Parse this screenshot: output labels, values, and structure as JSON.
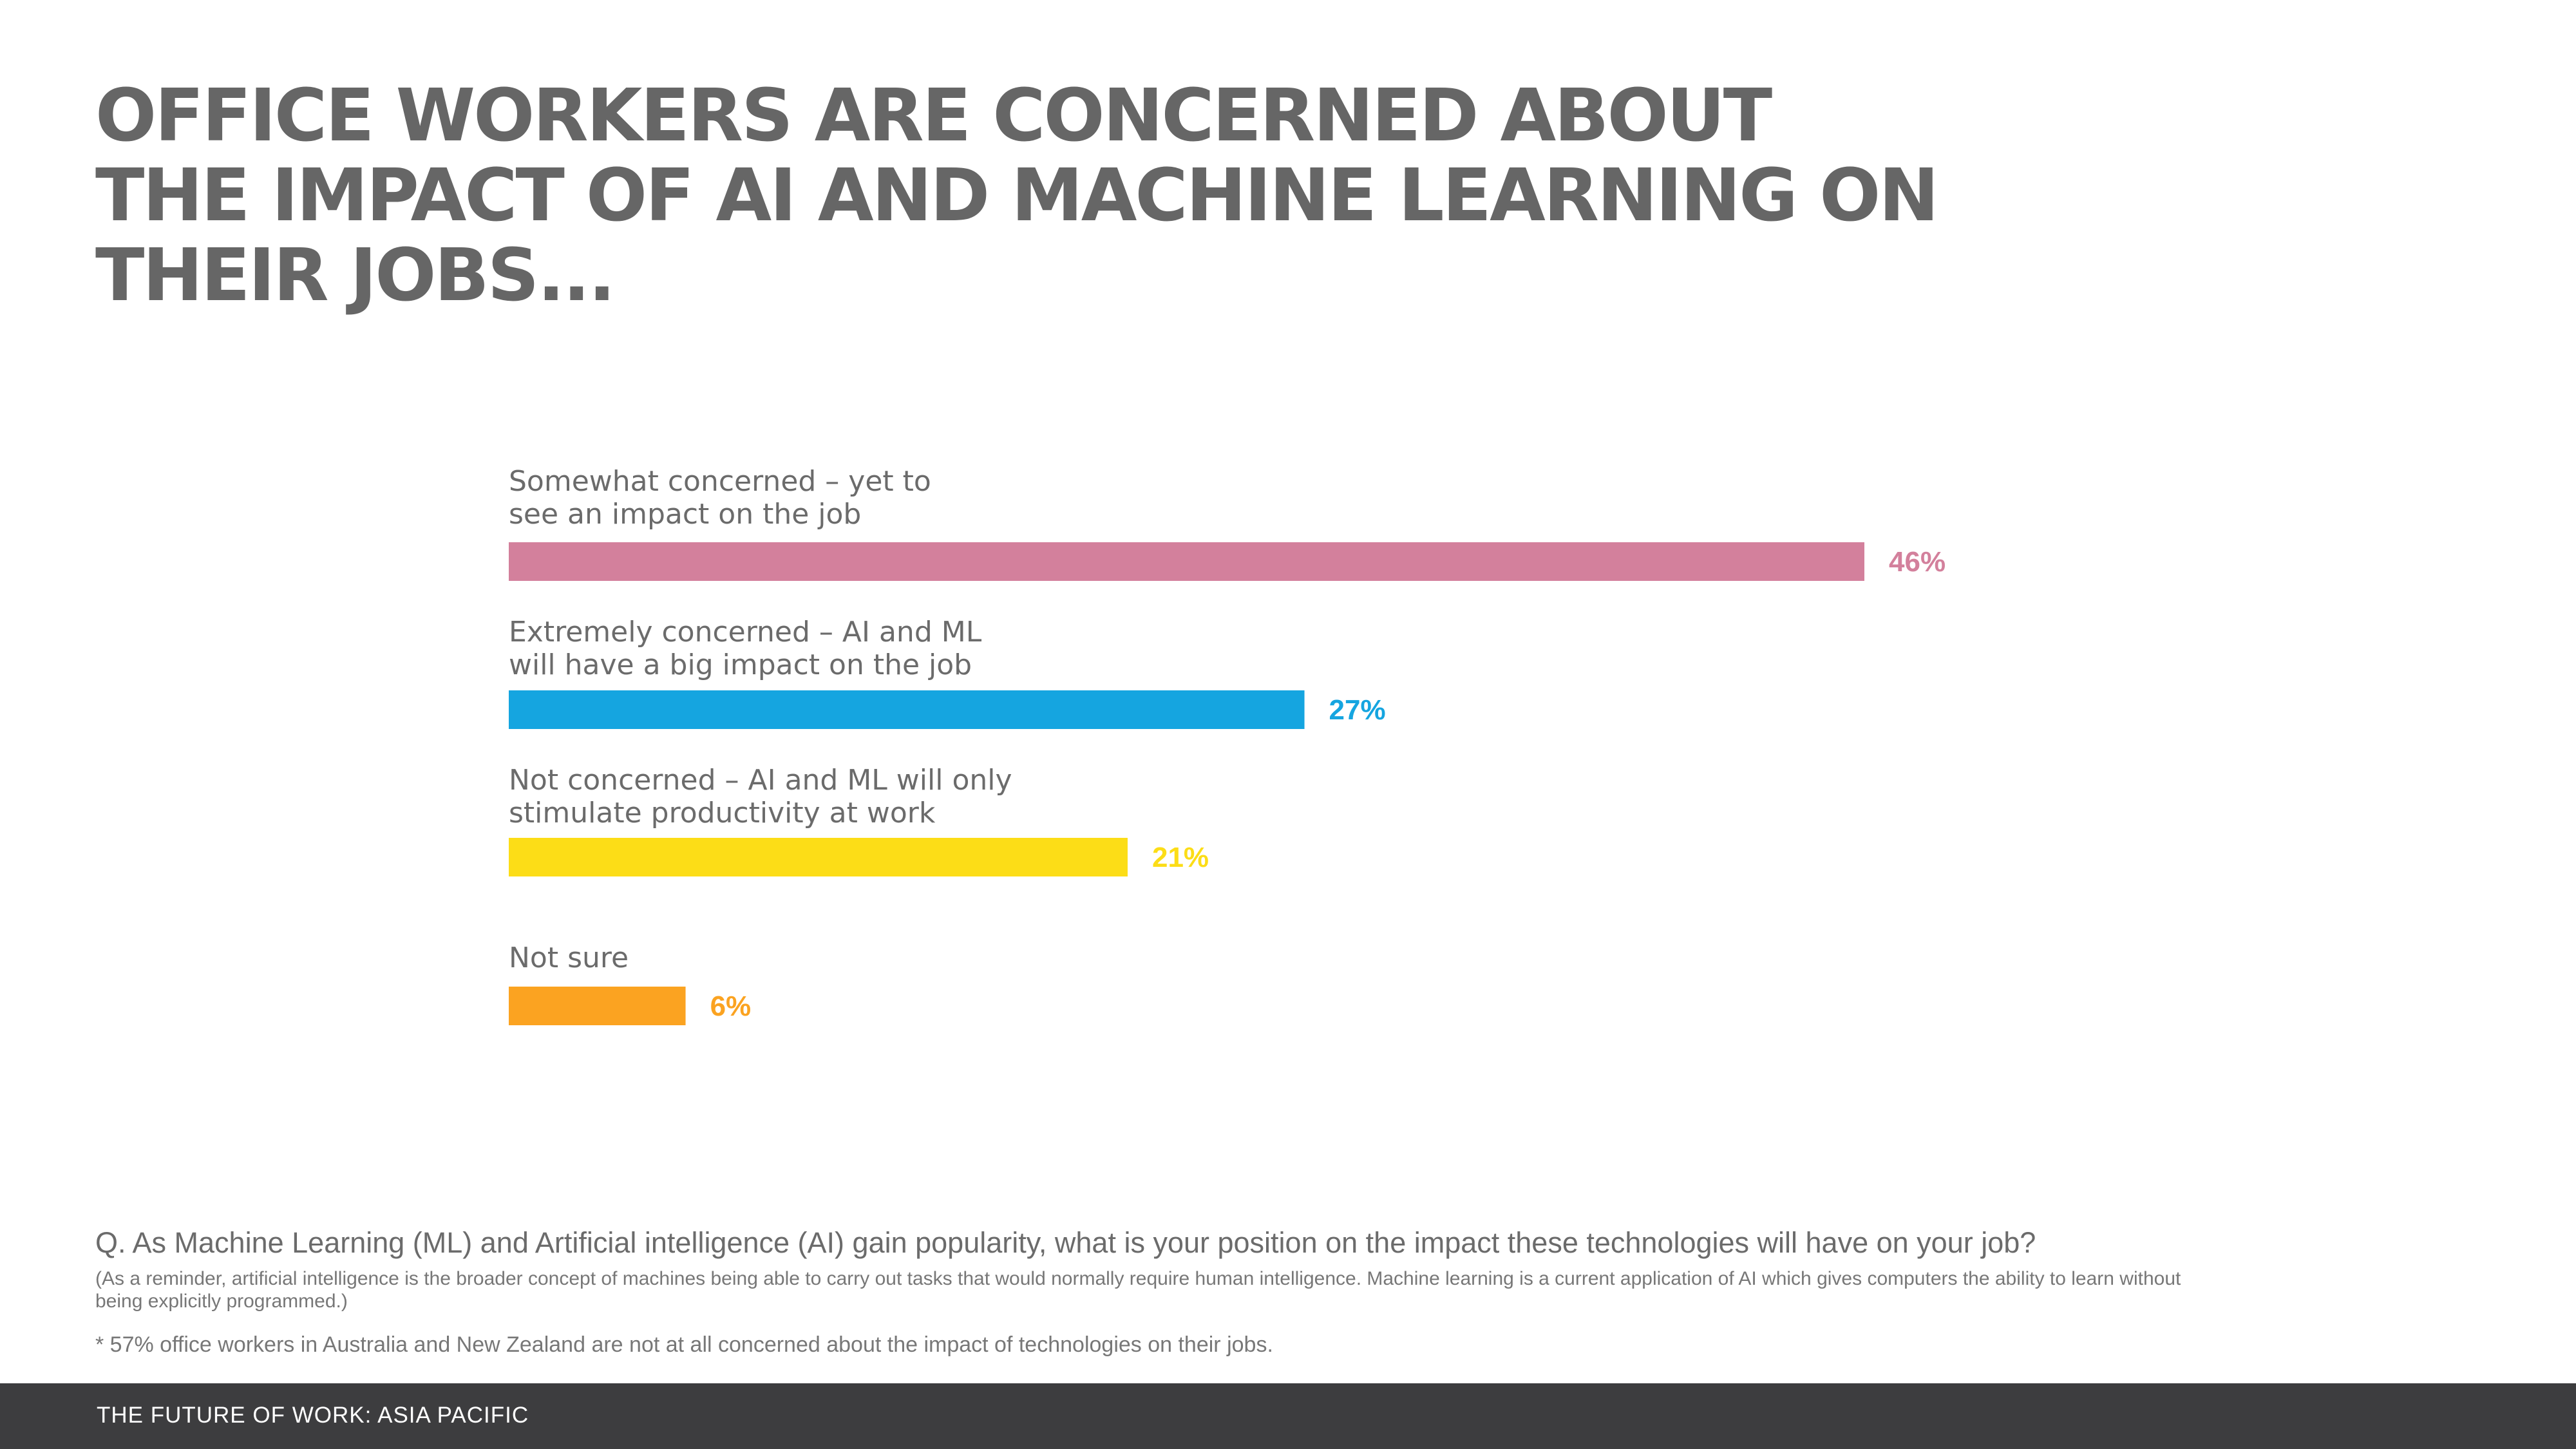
{
  "title_lines": [
    "OFFICE WORKERS ARE CONCERNED ABOUT",
    "THE IMPACT OF AI AND MACHINE LEARNING ON",
    "THEIR JOBS..."
  ],
  "chart_data": {
    "type": "bar",
    "orientation": "horizontal",
    "categories": [
      [
        "Somewhat concerned – yet to",
        "see an impact on the job"
      ],
      [
        "Extremely concerned – AI and ML",
        "will have a big impact on the job"
      ],
      [
        "Not concerned – AI and ML will only",
        "stimulate productivity at work"
      ],
      [
        "Not sure"
      ]
    ],
    "values": [
      46,
      27,
      21,
      6
    ],
    "value_labels": [
      "46%",
      "27%",
      "21%",
      "6%"
    ],
    "colors": [
      "#d3809c",
      "#15a5e0",
      "#fcdd17",
      "#fba321"
    ],
    "xlim": [
      0,
      46
    ],
    "grid": false
  },
  "question": "Q. As Machine Learning (ML) and Artificial intelligence (AI) gain popularity, what is your position on the impact these technologies will have on your job?",
  "reminder": "(As a reminder, artificial intelligence is the broader concept of machines being able to carry out tasks that would normally require human intelligence. Machine learning is a current application of AI which gives computers the ability to learn without being explicitly programmed.)",
  "footnote": "* 57% office workers in Australia and New Zealand are not at all concerned about the impact of technologies on their jobs.",
  "footer": "THE FUTURE OF WORK: ASIA PACIFIC"
}
